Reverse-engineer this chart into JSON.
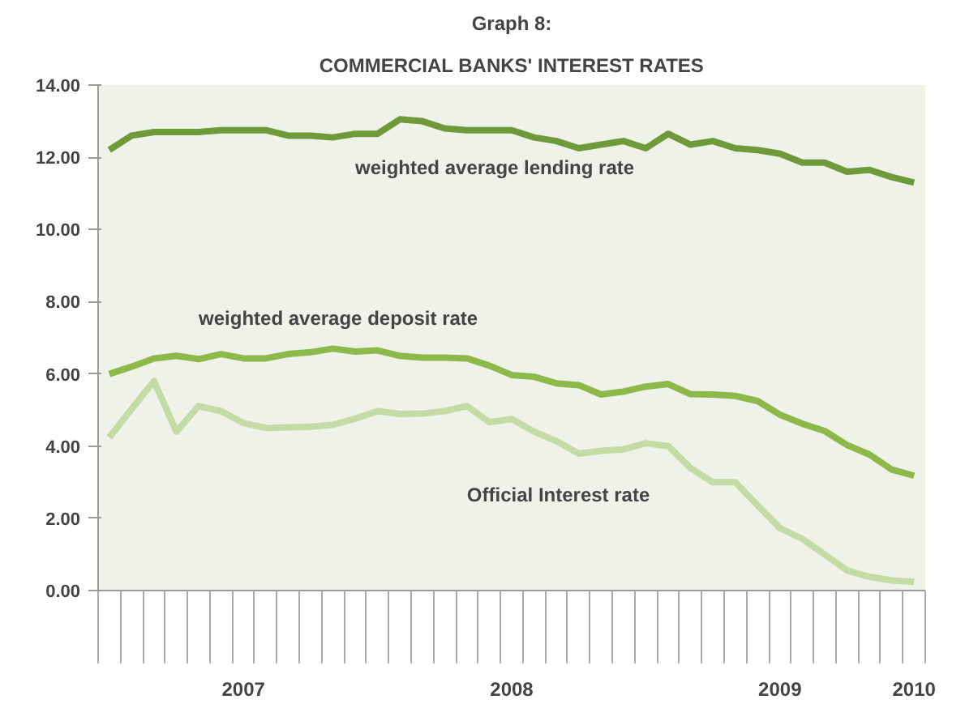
{
  "chart_data": {
    "type": "line",
    "title": "Graph 8:",
    "subtitle": "COMMERCIAL BANKS' INTEREST RATES",
    "categories": [
      null,
      null,
      null,
      null,
      null,
      null,
      "2007",
      null,
      null,
      null,
      null,
      null,
      null,
      null,
      null,
      null,
      null,
      null,
      "2008",
      null,
      null,
      null,
      null,
      null,
      null,
      null,
      null,
      null,
      null,
      null,
      "2009",
      null,
      null,
      null,
      null,
      null,
      "2010"
    ],
    "series": [
      {
        "name": "weighted average lending rate",
        "color": "#6e9a3a",
        "values": [
          12.2,
          12.6,
          12.7,
          12.7,
          12.7,
          12.75,
          12.75,
          12.75,
          12.6,
          12.6,
          12.55,
          12.65,
          12.65,
          13.05,
          13.0,
          12.8,
          12.75,
          12.75,
          12.75,
          12.55,
          12.45,
          12.25,
          12.35,
          12.45,
          12.25,
          12.65,
          12.35,
          12.45,
          12.25,
          12.2,
          12.1,
          11.85,
          11.85,
          11.6,
          11.65,
          11.45,
          11.3
        ]
      },
      {
        "name": "weighted average deposit rate",
        "color": "#8db84a",
        "values": [
          6.0,
          6.2,
          6.43,
          6.5,
          6.41,
          6.55,
          6.43,
          6.43,
          6.55,
          6.6,
          6.7,
          6.62,
          6.65,
          6.5,
          6.45,
          6.45,
          6.43,
          6.23,
          5.97,
          5.92,
          5.74,
          5.69,
          5.43,
          5.51,
          5.65,
          5.72,
          5.44,
          5.43,
          5.39,
          5.25,
          4.87,
          4.62,
          4.42,
          4.03,
          3.77,
          3.35,
          3.18
        ]
      },
      {
        "name": "Official Interest rate",
        "color": "#c5dba5",
        "values": [
          4.24,
          5.03,
          5.8,
          4.4,
          5.11,
          4.97,
          4.64,
          4.5,
          4.52,
          4.54,
          4.59,
          4.76,
          4.97,
          4.89,
          4.9,
          4.97,
          5.11,
          4.66,
          4.75,
          4.4,
          4.14,
          3.79,
          3.87,
          3.91,
          4.08,
          4.0,
          3.39,
          3.0,
          3.0,
          2.36,
          1.73,
          1.43,
          1.0,
          0.56,
          0.38,
          0.28,
          0.24
        ]
      }
    ],
    "ylim": [
      0,
      14
    ],
    "yticks": [
      {
        "value": 0,
        "label": "0.00"
      },
      {
        "value": 2,
        "label": "2.00"
      },
      {
        "value": 4,
        "label": "4.00"
      },
      {
        "value": 6,
        "label": "6.00"
      },
      {
        "value": 8,
        "label": "8.00"
      },
      {
        "value": 10,
        "label": "10.00"
      },
      {
        "value": 12,
        "label": "12.00"
      },
      {
        "value": 14,
        "label": "14.00"
      }
    ],
    "grid": false,
    "marker": "none",
    "line_style": "solid"
  }
}
